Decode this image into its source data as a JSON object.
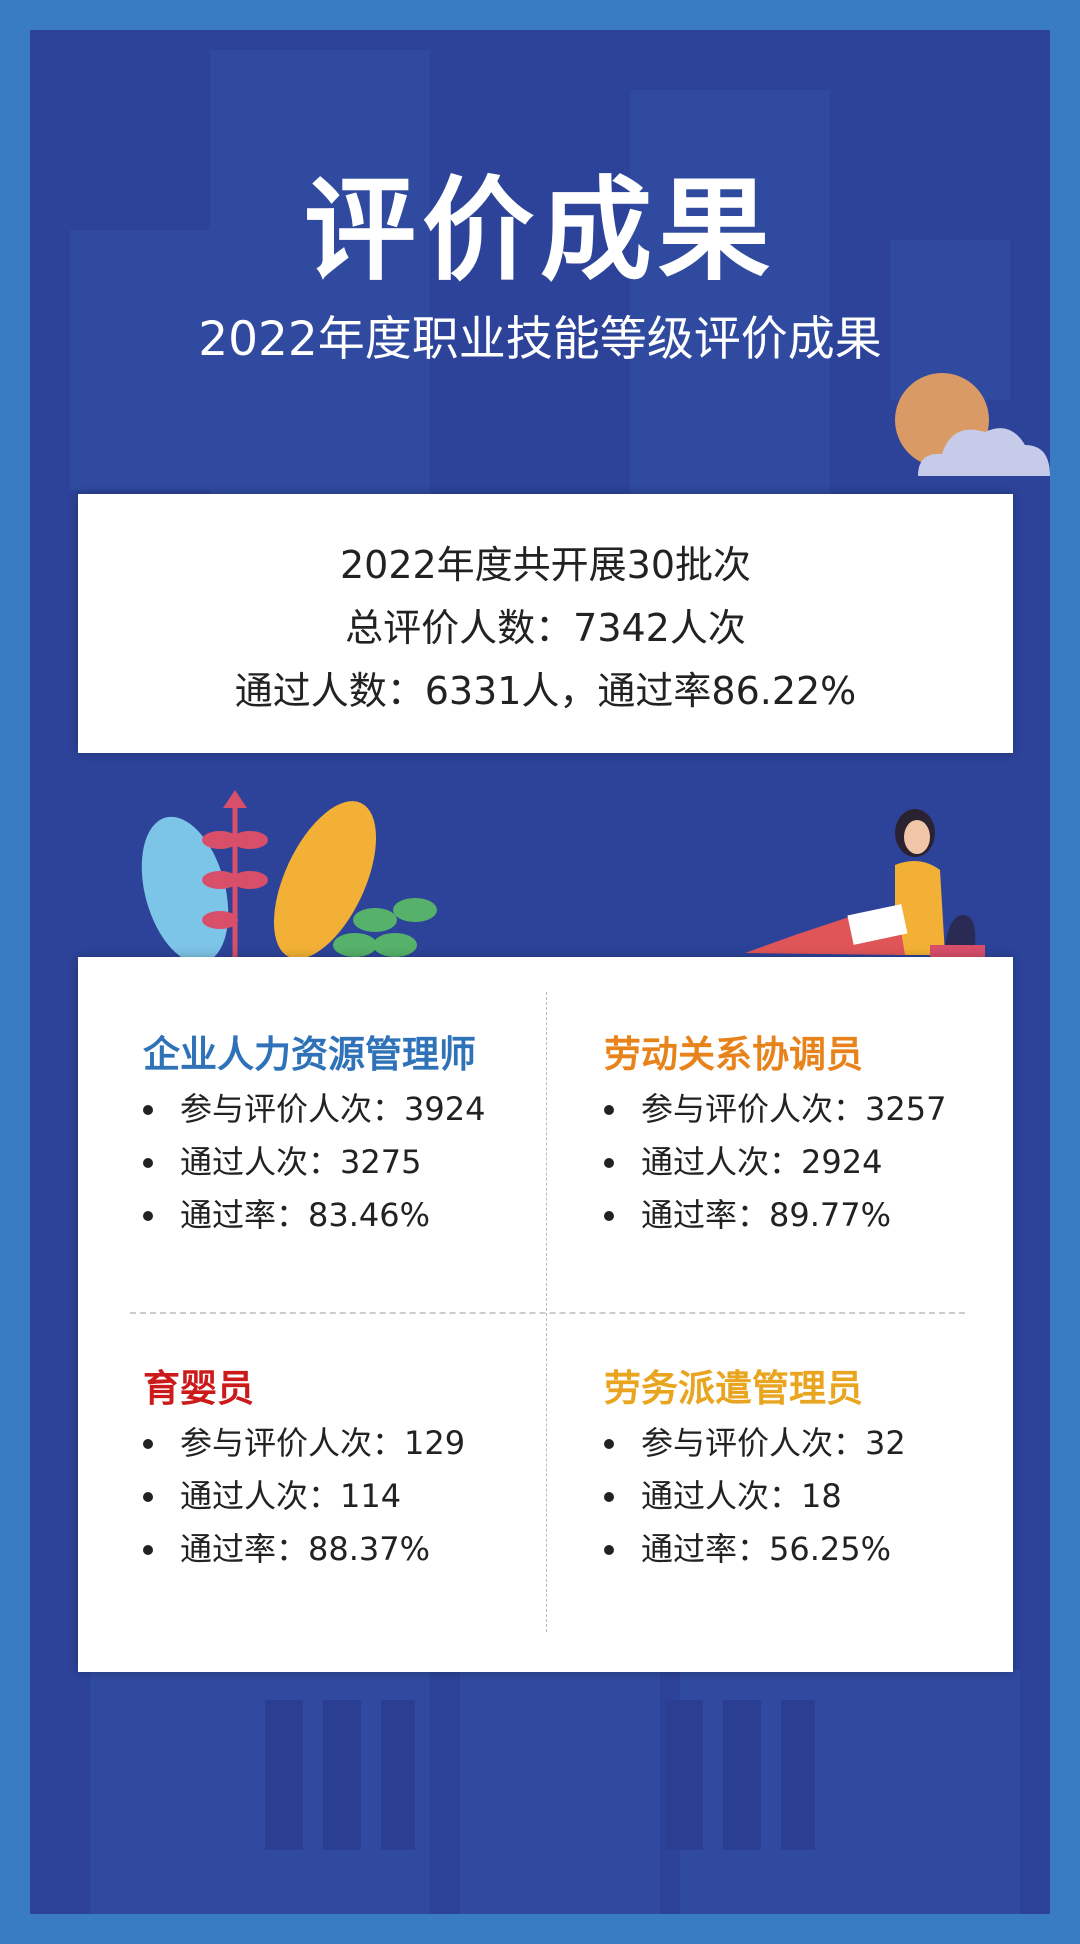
{
  "header": {
    "title": "评价成果",
    "subtitle": "2022年度职业技能等级评价成果"
  },
  "summary": {
    "lines": [
      "2022年度共开展30批次",
      "总评价人数：7342人次",
      "通过人数：6331人，通过率86.22%"
    ]
  },
  "sections": [
    {
      "name": "企业人力资源管理师",
      "color": "#2f72b8",
      "items": [
        "参与评价人次：3924",
        "通过人次：3275",
        "通过率：83.46%"
      ]
    },
    {
      "name": "劳动关系协调员",
      "color": "#e8831c",
      "items": [
        "参与评价人次：3257",
        "通过人次：2924",
        "通过率：89.77%"
      ]
    },
    {
      "name": "育婴员",
      "color": "#cc1a1a",
      "items": [
        "参与评价人次：129",
        "通过人次：114",
        "通过率：88.37%"
      ]
    },
    {
      "name": "劳务派遣管理员",
      "color": "#e9a520",
      "items": [
        "参与评价人次：32",
        "通过人次：18",
        "通过率：56.25%"
      ]
    }
  ],
  "colors": {
    "frame": "#3a7cc4",
    "background": "#2c4399",
    "sun": "#d99a66",
    "cloud": "#c5cbe8"
  }
}
